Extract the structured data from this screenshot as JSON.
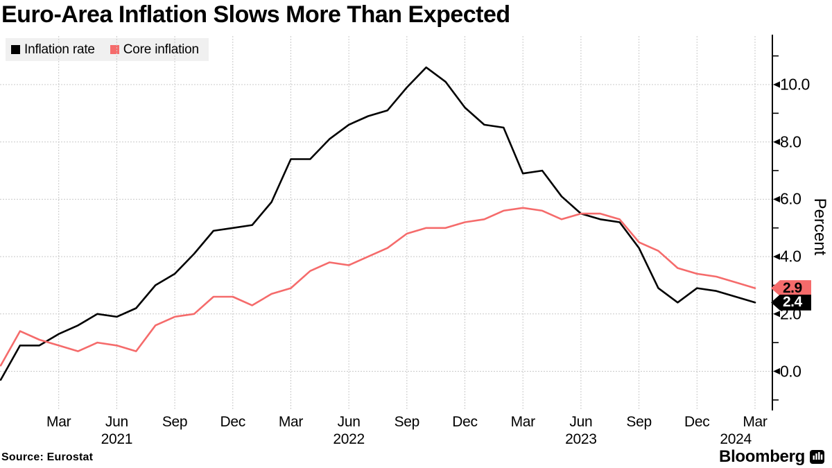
{
  "title": "Euro-Area Inflation Slows More Than Expected",
  "legend": [
    {
      "label": "Inflation rate",
      "color": "#000000"
    },
    {
      "label": "Core inflation",
      "color": "#f56b6b"
    }
  ],
  "source_note": "Source: Eurostat",
  "brand": {
    "name": "Bloomberg",
    "icon": "bloomberg-terminal-icon"
  },
  "y_axis": {
    "title": "Percent",
    "side": "right",
    "major_ticks": [
      {
        "value": 0,
        "label": "0.0"
      },
      {
        "value": 2,
        "label": "2.0"
      },
      {
        "value": 4,
        "label": "4.0"
      },
      {
        "value": 6,
        "label": "6.0"
      },
      {
        "value": 8,
        "label": "8.0"
      },
      {
        "value": 10,
        "label": "10.0"
      }
    ],
    "minor_ticks": [
      -1,
      1,
      3,
      5,
      7,
      9,
      11
    ]
  },
  "x_axis": {
    "month_ticks": [
      {
        "index": 3,
        "label": "Mar"
      },
      {
        "index": 6,
        "label": "Jun"
      },
      {
        "index": 9,
        "label": "Sep"
      },
      {
        "index": 12,
        "label": "Dec"
      },
      {
        "index": 15,
        "label": "Mar"
      },
      {
        "index": 18,
        "label": "Jun"
      },
      {
        "index": 21,
        "label": "Sep"
      },
      {
        "index": 24,
        "label": "Dec"
      },
      {
        "index": 27,
        "label": "Mar"
      },
      {
        "index": 30,
        "label": "Jun"
      },
      {
        "index": 33,
        "label": "Sep"
      },
      {
        "index": 36,
        "label": "Dec"
      },
      {
        "index": 39,
        "label": "Mar"
      }
    ],
    "year_labels": [
      {
        "index": 6,
        "label": "2021"
      },
      {
        "index": 18,
        "label": "2022"
      },
      {
        "index": 30,
        "label": "2023"
      },
      {
        "index": 38,
        "label": "2024"
      }
    ]
  },
  "end_labels": [
    {
      "series": "Core inflation",
      "value": "2.9",
      "bg": "#f56b6b",
      "fg": "#000000"
    },
    {
      "series": "Inflation rate",
      "value": "2.4",
      "bg": "#000000",
      "fg": "#ffffff"
    }
  ],
  "chart_data": {
    "type": "line",
    "x": [
      "2020-12",
      "2021-01",
      "2021-02",
      "2021-03",
      "2021-04",
      "2021-05",
      "2021-06",
      "2021-07",
      "2021-08",
      "2021-09",
      "2021-10",
      "2021-11",
      "2021-12",
      "2022-01",
      "2022-02",
      "2022-03",
      "2022-04",
      "2022-05",
      "2022-06",
      "2022-07",
      "2022-08",
      "2022-09",
      "2022-10",
      "2022-11",
      "2022-12",
      "2023-01",
      "2023-02",
      "2023-03",
      "2023-04",
      "2023-05",
      "2023-06",
      "2023-07",
      "2023-08",
      "2023-09",
      "2023-10",
      "2023-11",
      "2023-12",
      "2024-01",
      "2024-02",
      "2024-03"
    ],
    "series": [
      {
        "name": "Inflation rate",
        "color": "#000000",
        "values": [
          -0.3,
          0.9,
          0.9,
          1.3,
          1.6,
          2.0,
          1.9,
          2.2,
          3.0,
          3.4,
          4.1,
          4.9,
          5.0,
          5.1,
          5.9,
          7.4,
          7.4,
          8.1,
          8.6,
          8.9,
          9.1,
          9.9,
          10.6,
          10.1,
          9.2,
          8.6,
          8.5,
          6.9,
          7.0,
          6.1,
          5.5,
          5.3,
          5.2,
          4.3,
          2.9,
          2.4,
          2.9,
          2.8,
          2.6,
          2.4
        ]
      },
      {
        "name": "Core inflation",
        "color": "#f56b6b",
        "values": [
          0.2,
          1.4,
          1.1,
          0.9,
          0.7,
          1.0,
          0.9,
          0.7,
          1.6,
          1.9,
          2.0,
          2.6,
          2.6,
          2.3,
          2.7,
          2.9,
          3.5,
          3.8,
          3.7,
          4.0,
          4.3,
          4.8,
          5.0,
          5.0,
          5.2,
          5.3,
          5.6,
          5.7,
          5.6,
          5.3,
          5.5,
          5.5,
          5.3,
          4.5,
          4.2,
          3.6,
          3.4,
          3.3,
          3.1,
          2.9
        ]
      }
    ],
    "ylim": [
      -1.35,
      11.7
    ],
    "unit": "Percent",
    "grid": true,
    "legend_position": "top-left",
    "gridline_color": "#c8c8c8"
  }
}
